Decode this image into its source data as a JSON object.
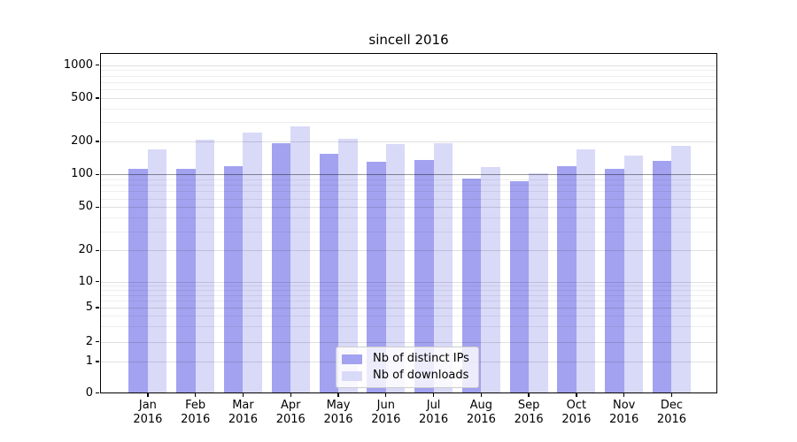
{
  "chart_data": {
    "type": "bar",
    "title": "sincell 2016",
    "categories": [
      "Jan 2016",
      "Feb 2016",
      "Mar 2016",
      "Apr 2016",
      "May 2016",
      "Jun 2016",
      "Jul 2016",
      "Aug 2016",
      "Sep 2016",
      "Oct 2016",
      "Nov 2016",
      "Dec 2016"
    ],
    "series": [
      {
        "name": "Nb of distinct IPs",
        "color": "#a2a2f0",
        "values": [
          112,
          113,
          120,
          193,
          153,
          131,
          135,
          92,
          87,
          120,
          113,
          134
        ]
      },
      {
        "name": "Nb of downloads",
        "color": "#d9d9f8",
        "values": [
          170,
          207,
          241,
          277,
          211,
          191,
          192,
          117,
          102,
          170,
          150,
          183
        ]
      }
    ],
    "xlabel": "",
    "ylabel": "",
    "yscale": "symlog",
    "yticks": [
      0,
      1,
      2,
      5,
      10,
      20,
      50,
      100,
      200,
      500,
      1000
    ],
    "minor_yticks": [
      3,
      4,
      6,
      7,
      8,
      9,
      30,
      40,
      60,
      70,
      80,
      90,
      300,
      400,
      600,
      700,
      800,
      900
    ],
    "ylim": [
      0,
      1300
    ],
    "grid": "horizontal major and minor gridlines drawn over bars",
    "reference_line_y": 100,
    "legend_position": "lower center",
    "colors": {
      "bar_distinct_ips": "#a2a2f0",
      "bar_downloads": "#d9d9f8",
      "reference_line": "#ababab",
      "axes_frame": "#000000",
      "background": "#ffffff"
    }
  }
}
